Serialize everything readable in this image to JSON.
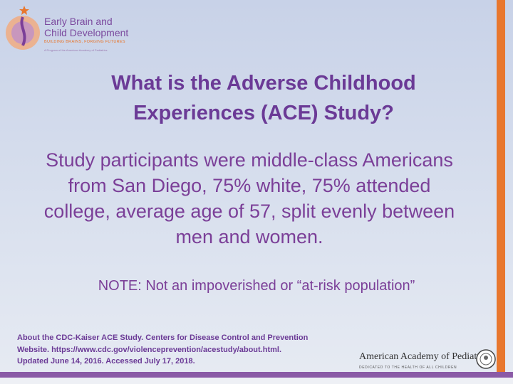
{
  "logo": {
    "line1": "Early Brain and",
    "line2": "Child Development",
    "tagline": "BUILDING BRAINS, FORGING FUTURES",
    "program": "A Program of the American Academy of Pediatrics"
  },
  "title": {
    "lines": [
      "What is the Adverse Childhood",
      "Experiences (ACE) Study?"
    ]
  },
  "body": {
    "lines": [
      "Study participants were middle-class Americans",
      "from San Diego, 75% white, 75% attended",
      "college, average age of 57, split evenly between",
      "men and women."
    ]
  },
  "note": "NOTE: Not an impoverished or “at-risk population”",
  "citation": {
    "lines": [
      "About the CDC-Kaiser ACE Study. Centers for Disease Control and Prevention",
      "Website. https://www.cdc.gov/violenceprevention/acestudy/about.html.",
      "Updated June 14, 2016. Accessed July 17, 2018."
    ]
  },
  "aap": {
    "name": "American Academy of Pediatrics",
    "motto": "DEDICATED TO THE HEALTH OF ALL CHILDREN"
  }
}
